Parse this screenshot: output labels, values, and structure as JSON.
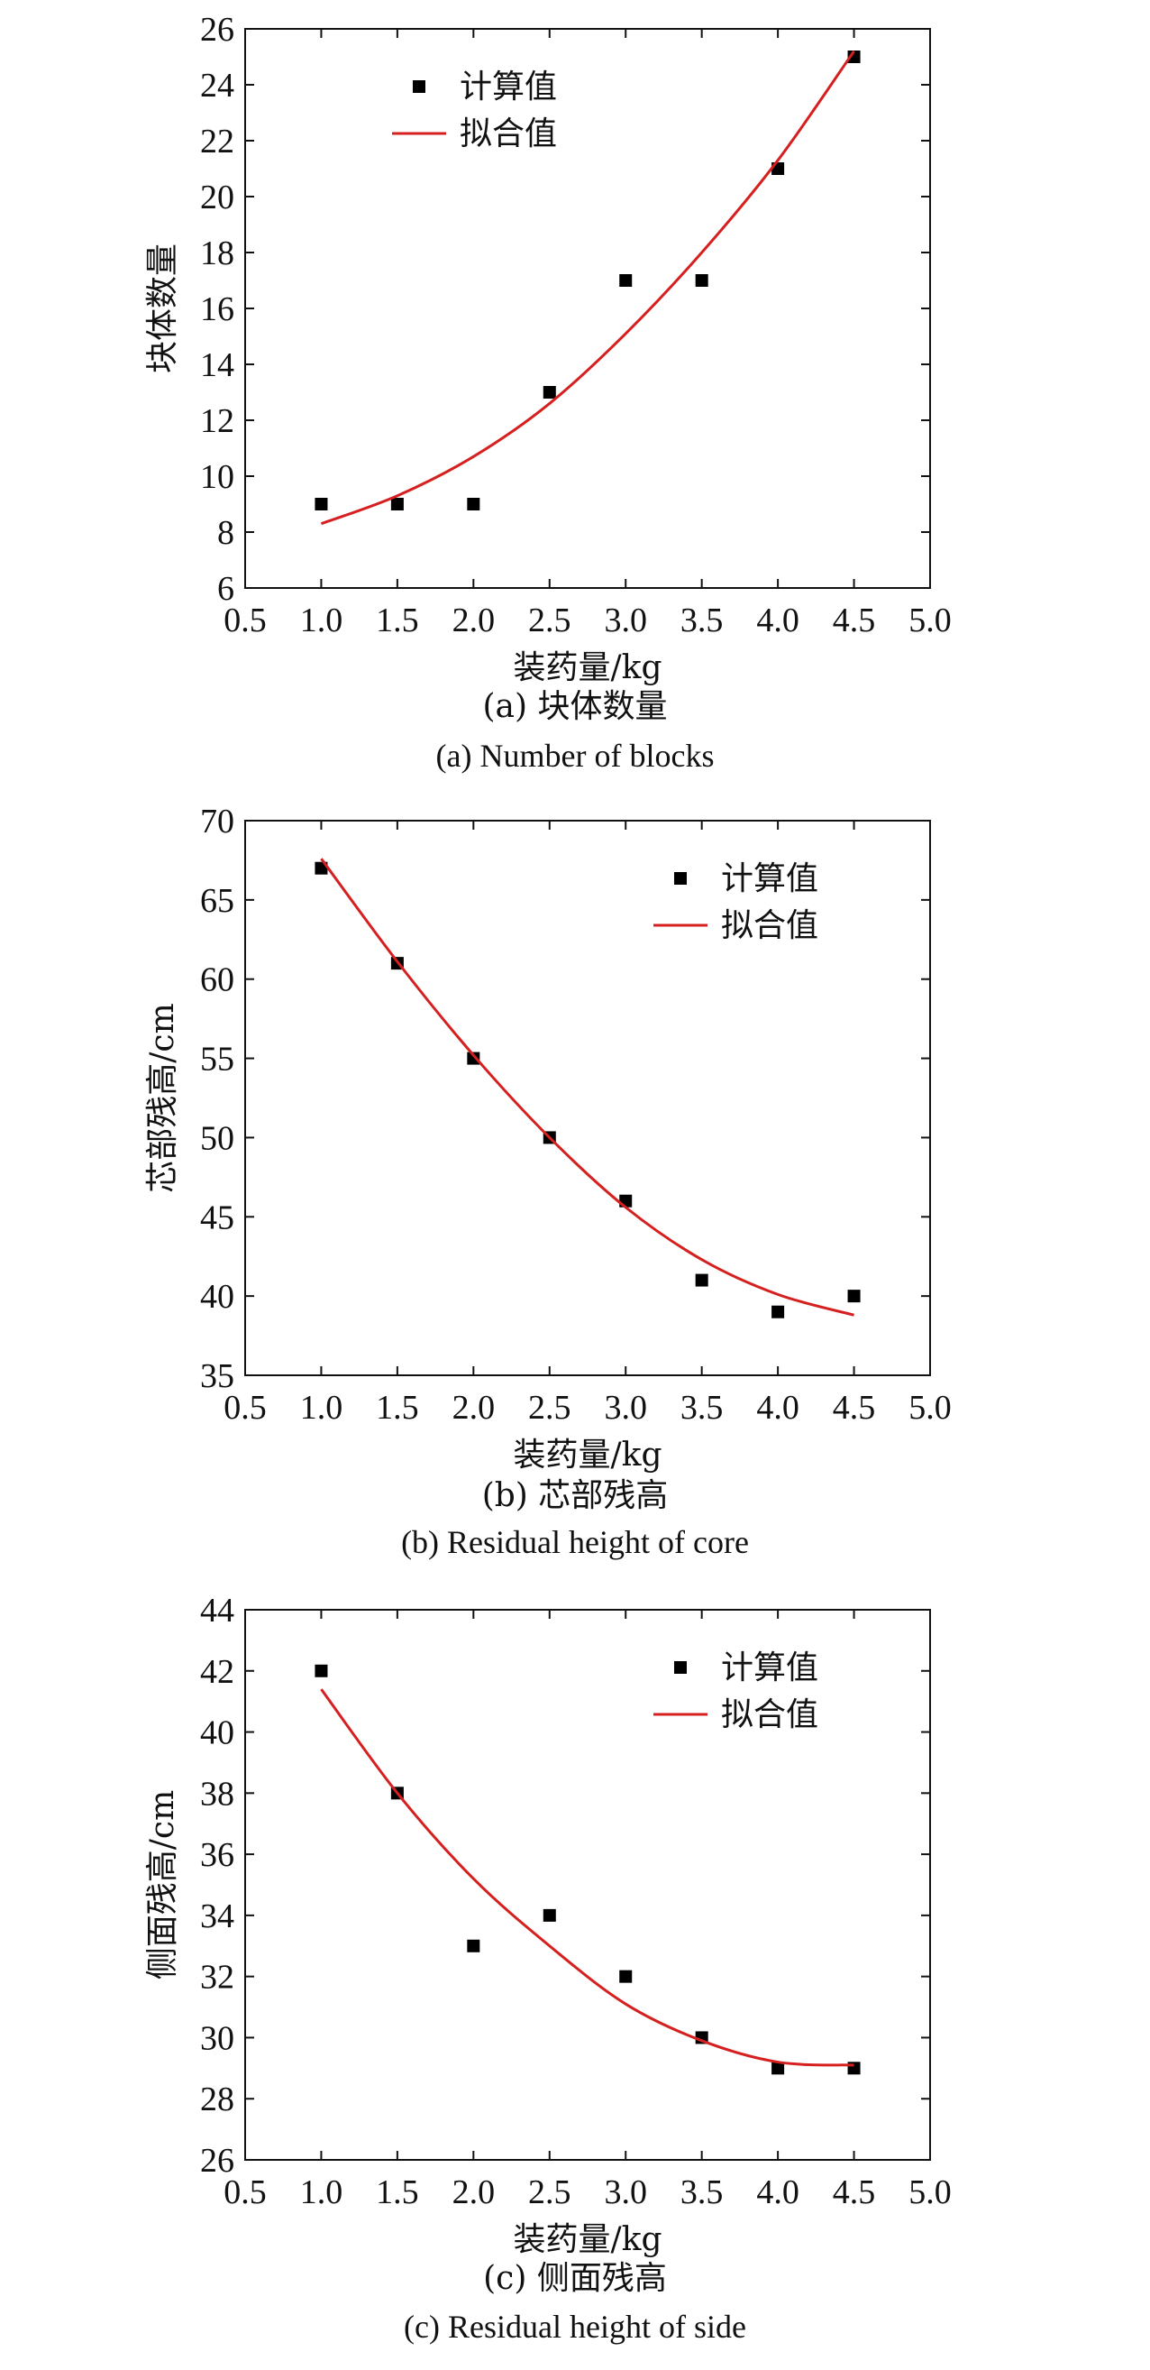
{
  "chart_data": [
    {
      "type": "scatter",
      "title": "",
      "xlabel": "装药量/kg",
      "ylabel": "块体数量",
      "xlim": [
        0.5,
        5.0
      ],
      "ylim": [
        6,
        26
      ],
      "xticks": [
        "0.5",
        "1.0",
        "1.5",
        "2.0",
        "2.5",
        "3.0",
        "3.5",
        "4.0",
        "4.5",
        "5.0"
      ],
      "yticks": [
        "6",
        "8",
        "10",
        "12",
        "14",
        "16",
        "18",
        "20",
        "22",
        "24",
        "26"
      ],
      "legend_position": "top-left",
      "grid": false,
      "series": [
        {
          "name": "计算值",
          "kind": "scatter",
          "color": "#000000",
          "x": [
            1.0,
            1.5,
            2.0,
            2.5,
            3.0,
            3.5,
            4.0,
            4.5
          ],
          "y": [
            9,
            9,
            9,
            13,
            17,
            17,
            21,
            25
          ]
        },
        {
          "name": "拟合值",
          "kind": "line",
          "color": "#d62020",
          "x": [
            1.0,
            1.5,
            2.0,
            2.5,
            3.0,
            3.5,
            4.0,
            4.5
          ],
          "y": [
            8.3,
            9.3,
            10.7,
            12.6,
            15.1,
            18.0,
            21.3,
            25.2
          ]
        }
      ],
      "caption_cn": "(a) 块体数量",
      "caption_en": "(a) Number of  blocks"
    },
    {
      "type": "scatter",
      "title": "",
      "xlabel": "装药量/kg",
      "ylabel": "芯部残高/cm",
      "xlim": [
        0.5,
        5.0
      ],
      "ylim": [
        35,
        70
      ],
      "xticks": [
        "0.5",
        "1.0",
        "1.5",
        "2.0",
        "2.5",
        "3.0",
        "3.5",
        "4.0",
        "4.5",
        "5.0"
      ],
      "yticks": [
        "35",
        "40",
        "45",
        "50",
        "55",
        "60",
        "65",
        "70"
      ],
      "legend_position": "top-right",
      "grid": false,
      "series": [
        {
          "name": "计算值",
          "kind": "scatter",
          "color": "#000000",
          "x": [
            1.0,
            1.5,
            2.0,
            2.5,
            3.0,
            3.5,
            4.0,
            4.5
          ],
          "y": [
            67,
            61,
            55,
            50,
            46,
            41,
            39,
            40
          ]
        },
        {
          "name": "拟合值",
          "kind": "line",
          "color": "#d62020",
          "x": [
            1.0,
            1.5,
            2.0,
            2.5,
            3.0,
            3.5,
            4.0,
            4.5
          ],
          "y": [
            67.6,
            61.1,
            55.2,
            50.0,
            45.6,
            42.3,
            40.1,
            38.8
          ]
        }
      ],
      "caption_cn": "(b) 芯部残高",
      "caption_en": "(b) Residual height of core"
    },
    {
      "type": "scatter",
      "title": "",
      "xlabel": "装药量/kg",
      "ylabel": "侧面残高/cm",
      "xlim": [
        0.5,
        5.0
      ],
      "ylim": [
        26,
        44
      ],
      "xticks": [
        "0.5",
        "1.0",
        "1.5",
        "2.0",
        "2.5",
        "3.0",
        "3.5",
        "4.0",
        "4.5",
        "5.0"
      ],
      "yticks": [
        "26",
        "28",
        "30",
        "32",
        "34",
        "36",
        "38",
        "40",
        "42",
        "44"
      ],
      "legend_position": "top-right",
      "grid": false,
      "series": [
        {
          "name": "计算值",
          "kind": "scatter",
          "color": "#000000",
          "x": [
            1.0,
            1.5,
            2.0,
            2.5,
            3.0,
            3.5,
            4.0,
            4.5
          ],
          "y": [
            42,
            38,
            33,
            34,
            32,
            30,
            29,
            29
          ]
        },
        {
          "name": "拟合值",
          "kind": "line",
          "color": "#d62020",
          "x": [
            1.0,
            1.5,
            2.0,
            2.5,
            3.0,
            3.5,
            4.0,
            4.5
          ],
          "y": [
            41.4,
            38.0,
            35.2,
            33.0,
            31.1,
            29.9,
            29.2,
            29.1
          ]
        }
      ],
      "caption_cn": "(c) 侧面残高",
      "caption_en": "(c) Residual height of side"
    }
  ]
}
